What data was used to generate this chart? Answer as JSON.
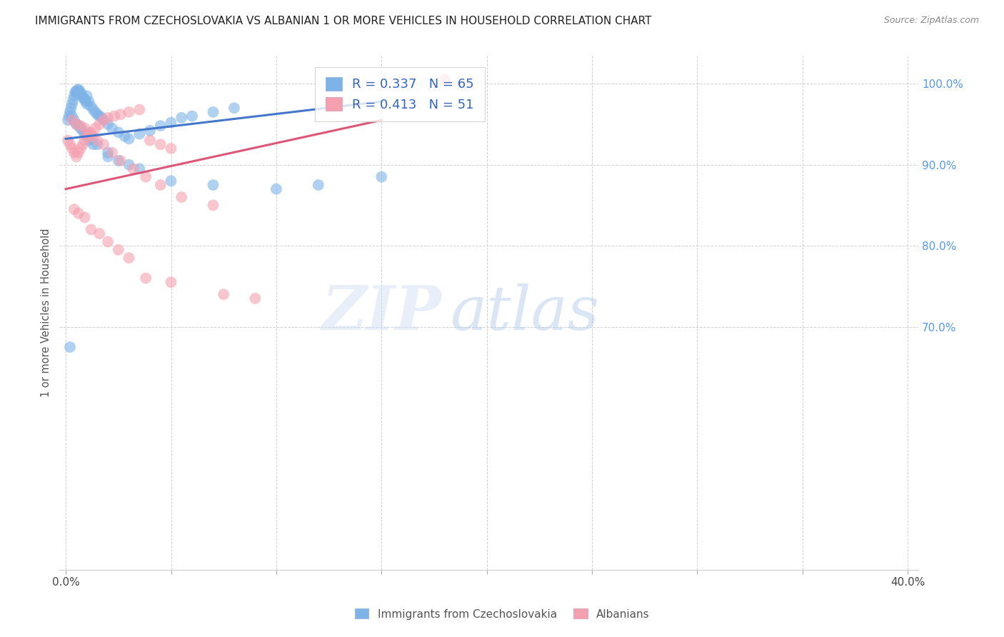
{
  "title": "IMMIGRANTS FROM CZECHOSLOVAKIA VS ALBANIAN 1 OR MORE VEHICLES IN HOUSEHOLD CORRELATION CHART",
  "source": "Source: ZipAtlas.com",
  "ylabel": "1 or more Vehicles in Household",
  "watermark_zip": "ZIP",
  "watermark_atlas": "atlas",
  "blue_color": "#7EB3E8",
  "pink_color": "#F4A0B0",
  "blue_line_color": "#4477CC",
  "pink_line_color": "#DD5577",
  "legend_label1": "R = 0.337   N = 65",
  "legend_label2": "R = 0.413   N = 51",
  "legend_label1_bottom": "Immigrants from Czechoslovakia",
  "legend_label2_bottom": "Albanians",
  "blue_scatter_x": [
    0.1,
    0.15,
    0.2,
    0.25,
    0.3,
    0.35,
    0.4,
    0.45,
    0.5,
    0.5,
    0.55,
    0.6,
    0.65,
    0.7,
    0.75,
    0.8,
    0.85,
    0.9,
    0.95,
    1.0,
    1.0,
    1.1,
    1.2,
    1.3,
    1.4,
    1.5,
    1.6,
    1.7,
    1.8,
    2.0,
    2.2,
    2.5,
    2.8,
    3.0,
    3.5,
    4.0,
    4.5,
    5.0,
    5.5,
    6.0,
    7.0,
    8.0,
    0.3,
    0.4,
    0.6,
    0.8,
    1.0,
    1.2,
    1.5,
    2.0,
    2.5,
    3.5,
    5.0,
    7.0,
    10.0,
    12.0,
    15.0,
    0.5,
    0.7,
    0.9,
    1.1,
    1.3,
    2.0,
    3.0,
    0.2
  ],
  "blue_scatter_y": [
    95.5,
    96.0,
    96.5,
    97.0,
    97.5,
    98.0,
    98.5,
    99.0,
    99.0,
    98.8,
    99.2,
    99.3,
    99.1,
    98.9,
    98.6,
    98.4,
    98.2,
    98.0,
    97.8,
    97.5,
    98.5,
    97.8,
    97.2,
    96.8,
    96.5,
    96.2,
    96.0,
    95.8,
    95.5,
    95.0,
    94.5,
    94.0,
    93.5,
    93.2,
    93.8,
    94.2,
    94.8,
    95.2,
    95.8,
    96.0,
    96.5,
    97.0,
    96.0,
    95.5,
    94.8,
    94.2,
    93.8,
    93.2,
    92.5,
    91.5,
    90.5,
    89.5,
    88.0,
    87.5,
    87.0,
    87.5,
    88.5,
    95.0,
    94.5,
    93.8,
    93.0,
    92.5,
    91.0,
    90.0,
    67.5
  ],
  "pink_scatter_x": [
    0.1,
    0.2,
    0.3,
    0.4,
    0.5,
    0.6,
    0.7,
    0.8,
    0.9,
    1.0,
    1.1,
    1.2,
    1.4,
    1.6,
    1.8,
    2.0,
    2.3,
    2.6,
    3.0,
    3.5,
    4.0,
    4.5,
    5.0,
    0.3,
    0.5,
    0.7,
    0.9,
    1.1,
    1.3,
    1.5,
    1.8,
    2.2,
    2.6,
    3.2,
    3.8,
    4.5,
    5.5,
    7.0,
    0.4,
    0.6,
    0.9,
    1.2,
    1.6,
    2.0,
    2.5,
    3.0,
    3.8,
    5.0,
    7.5,
    9.0,
    18.0
  ],
  "pink_scatter_y": [
    93.0,
    92.5,
    92.0,
    91.5,
    91.0,
    91.5,
    92.0,
    92.5,
    93.0,
    93.5,
    93.8,
    94.0,
    94.5,
    95.0,
    95.5,
    95.8,
    96.0,
    96.2,
    96.5,
    96.8,
    93.0,
    92.5,
    92.0,
    95.5,
    95.0,
    94.8,
    94.5,
    94.0,
    93.5,
    93.0,
    92.5,
    91.5,
    90.5,
    89.5,
    88.5,
    87.5,
    86.0,
    85.0,
    84.5,
    84.0,
    83.5,
    82.0,
    81.5,
    80.5,
    79.5,
    78.5,
    76.0,
    75.5,
    74.0,
    73.5,
    100.5
  ],
  "blue_line_pts": [
    [
      0.0,
      93.2
    ],
    [
      15.0,
      97.8
    ]
  ],
  "pink_line_pts": [
    [
      0.0,
      87.0
    ],
    [
      15.0,
      95.5
    ]
  ],
  "xlim": [
    -0.3,
    40.5
  ],
  "ylim": [
    40.0,
    103.5
  ],
  "yticks": [
    40,
    70,
    80,
    90,
    100
  ],
  "ytick_labels": [
    "",
    "70.0%",
    "80.0%",
    "90.0%",
    "100.0%"
  ],
  "xticks": [
    0,
    5,
    10,
    15,
    20,
    25,
    30,
    35,
    40
  ],
  "xtick_labels": [
    "0.0%",
    "",
    "",
    "",
    "",
    "",
    "",
    "",
    "40.0%"
  ],
  "grid_color": "#cccccc",
  "bg_color": "#ffffff"
}
